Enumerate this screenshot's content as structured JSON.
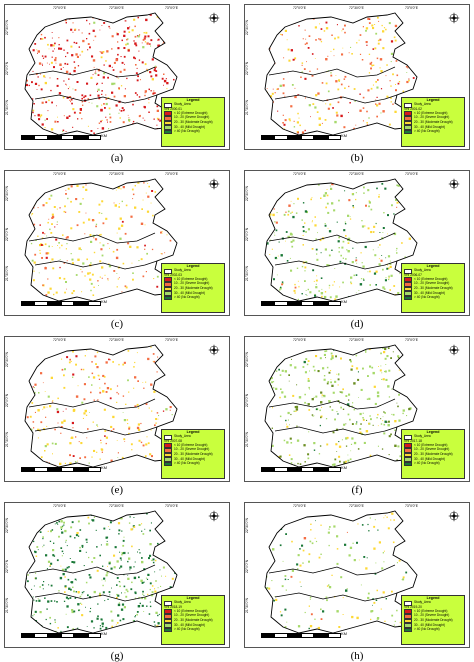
{
  "panels": [
    {
      "label": "(a)",
      "vci": "VHI 2000-01",
      "style": "red"
    },
    {
      "label": "(b)",
      "vci": "VHI 2001-02",
      "style": "orange"
    },
    {
      "label": "(c)",
      "vci": "VHI 2002-03",
      "style": "yellow"
    },
    {
      "label": "(d)",
      "vci": "VHI 2006-07",
      "style": "mixgreen"
    },
    {
      "label": "(e)",
      "vci": "VHI 2007-08",
      "style": "yelloworange"
    },
    {
      "label": "(f)",
      "vci": "VHI 2017-18",
      "style": "olive"
    },
    {
      "label": "(g)",
      "vci": "VHI 2018-19",
      "style": "darkgreen"
    },
    {
      "label": "(h)",
      "vci": "VHI 2019-20",
      "style": "sparsegreen"
    }
  ],
  "legend": {
    "title": "Legend",
    "study_area": "Study_Area",
    "classes": [
      {
        "label": "< 10 (Extreme Drought)",
        "color": "#d7191c"
      },
      {
        "label": "10 - 20 (Severe Drought)",
        "color": "#f46d43"
      },
      {
        "label": "20 - 30 (Moderate Drought)",
        "color": "#fdd835"
      },
      {
        "label": "30 - 40 (Mild Drought)",
        "color": "#a6d96a"
      },
      {
        "label": "> 40 (No Drought)",
        "color": "#1a7837"
      }
    ]
  },
  "scale_label": "KM",
  "ticks_top": [
    "72°0'0\"E",
    "72°30'0\"E",
    "73°0'0\"E"
  ],
  "ticks_side": [
    "22°30'0\"N",
    "22°0'0\"N",
    "21°30'0\"N"
  ],
  "north_label": "N"
}
